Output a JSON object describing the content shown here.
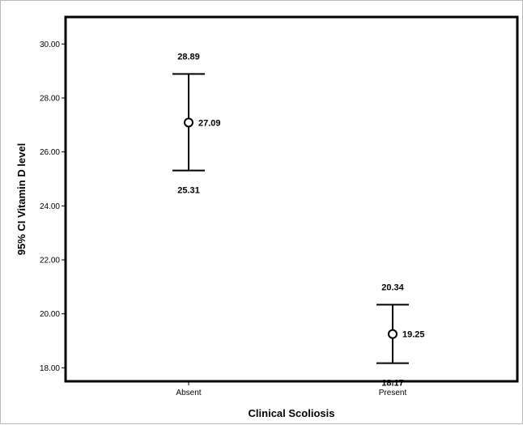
{
  "chart_data": {
    "type": "errorbar",
    "xlabel": "Clinical Scoliosis",
    "ylabel": "95% CI Vitamin D level",
    "ylim": [
      17.5,
      31.0
    ],
    "yticks": [
      18.0,
      20.0,
      22.0,
      24.0,
      26.0,
      28.0,
      30.0
    ],
    "ytick_labels": [
      "18.00",
      "20.00",
      "22.00",
      "24.00",
      "26.00",
      "28.00",
      "30.00"
    ],
    "categories": [
      "Absent",
      "Present"
    ],
    "points": [
      {
        "category": "Absent",
        "mean": 27.09,
        "lower": 25.31,
        "upper": 28.89,
        "mean_label": "27.09",
        "lower_label": "25.31",
        "upper_label": "28.89"
      },
      {
        "category": "Present",
        "mean": 19.25,
        "lower": 18.17,
        "upper": 20.34,
        "mean_label": "19.25",
        "lower_label": "18.17",
        "upper_label": "20.34"
      }
    ],
    "grid": false,
    "legend": "none"
  }
}
